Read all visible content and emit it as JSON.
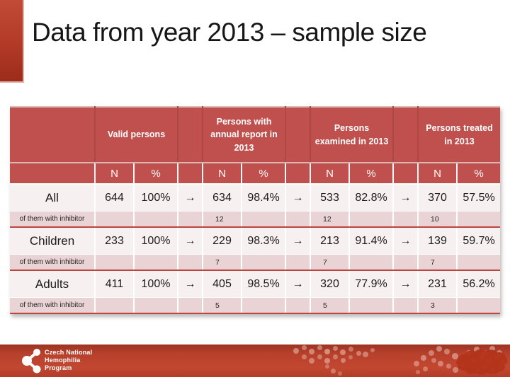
{
  "slide": {
    "title": "Data from year 2013 – sample size"
  },
  "table": {
    "groups": [
      "Valid persons",
      "Persons with annual report in 2013",
      "Persons examined in 2013",
      "Persons treated in 2013"
    ],
    "subheader_n": "N",
    "subheader_pct": "%",
    "arrow": "→",
    "rows": [
      {
        "label": "All",
        "n1": "644",
        "p1": "100%",
        "n2": "634",
        "p2": "98.4%",
        "n3": "533",
        "p3": "82.8%",
        "n4": "370",
        "p4": "57.5%"
      },
      {
        "label": "of them with inhibitor",
        "n2": "12",
        "n3": "12",
        "n4": "10"
      },
      {
        "label": "Children",
        "n1": "233",
        "p1": "100%",
        "n2": "229",
        "p2": "98.3%",
        "n3": "213",
        "p3": "91.4%",
        "n4": "139",
        "p4": "59.7%"
      },
      {
        "label": "of them with inhibitor",
        "n2": "7",
        "n3": "7",
        "n4": "7"
      },
      {
        "label": "Adults",
        "n1": "411",
        "p1": "100%",
        "n2": "405",
        "p2": "98.5%",
        "n3": "320",
        "p3": "77.9%",
        "n4": "231",
        "p4": "56.2%"
      },
      {
        "label": "of them with inhibitor",
        "n2": "5",
        "n3": "5",
        "n4": "3"
      }
    ]
  },
  "footer": {
    "org_line1": "Czech National",
    "org_line2": "Hemophilia",
    "org_line3": "Program"
  },
  "colors": {
    "table_header_red": "#c0504d",
    "row_light_pink": "#f7f0f0",
    "row_inhibitor_pink": "#e9d3d5",
    "separator_red": "#bc453f",
    "arrow_red": "#ae352b",
    "footer_red": "#c24731",
    "accent_bar_red": "#b23a27",
    "title_color": "#161616"
  }
}
